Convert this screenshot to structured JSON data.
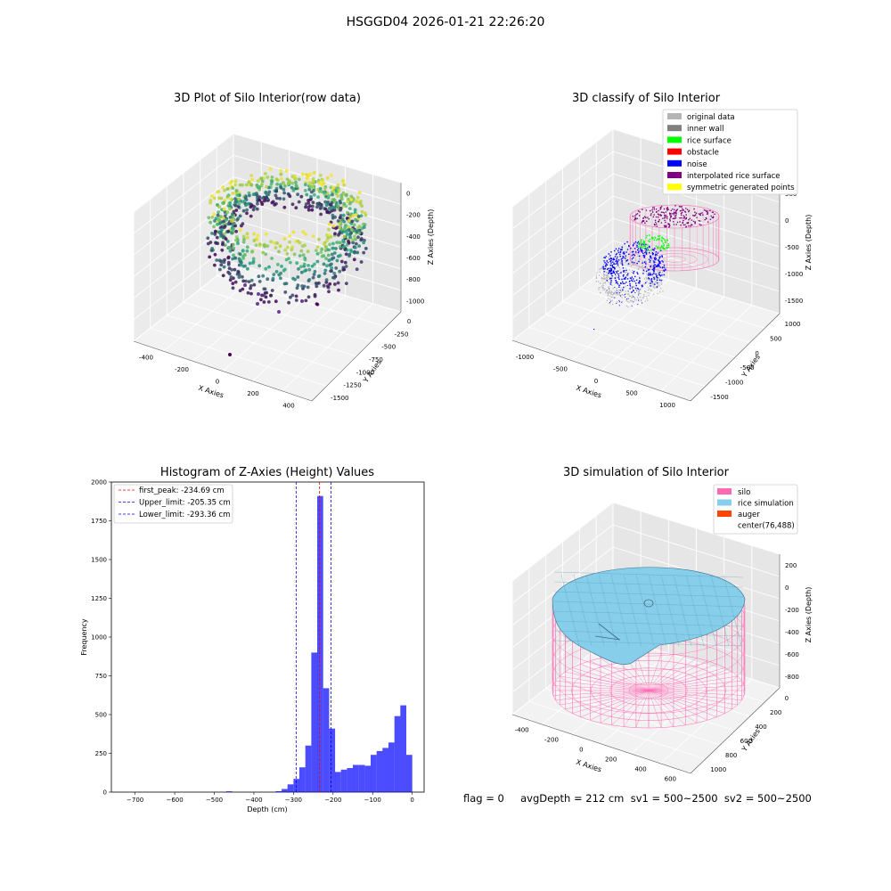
{
  "suptitle": "HSGGD04 2026-01-21 22:26:20",
  "panel1": {
    "title": "3D Plot of Silo Interior(row data)",
    "xlabel": "X Axies",
    "ylabel": "Y Axies",
    "zlabel": "Z Axies (Depth)",
    "xticks": [
      "-400",
      "-200",
      "0",
      "200",
      "400"
    ],
    "yticks": [
      "0",
      "-250",
      "-500",
      "-750",
      "-1000",
      "-1250",
      "-1500"
    ],
    "zticks": [
      "0",
      "-200",
      "-400",
      "-600",
      "-800",
      "-1000"
    ],
    "colors": {
      "high": "#fde725",
      "mid": "#22a884",
      "low": "#440154"
    }
  },
  "panel2": {
    "title": "3D classify of Silo Interior",
    "xlabel": "X Axies",
    "ylabel": "Y Axies",
    "zlabel": "Z Axies (Depth)",
    "xticks": [
      "-1000",
      "-500",
      "0",
      "500",
      "1000"
    ],
    "yticks": [
      "1000",
      "500",
      "0",
      "-500",
      "-1000",
      "-1500"
    ],
    "zticks": [
      "500",
      "0",
      "-500",
      "-1000",
      "-1500"
    ],
    "legend": [
      {
        "label": "original data",
        "color": "#b4b4b4"
      },
      {
        "label": "inner wall",
        "color": "#808080"
      },
      {
        "label": "rice surface",
        "color": "#00ff00"
      },
      {
        "label": "obstacle",
        "color": "#ff0000"
      },
      {
        "label": "noise",
        "color": "#0000ff"
      },
      {
        "label": "interpolated rice surface",
        "color": "#800080"
      },
      {
        "label": "symmetric generated points",
        "color": "#ffff00"
      }
    ],
    "silo_color": "#ff69b4"
  },
  "panel3": {
    "title": "3D simulation of Silo Interior",
    "xlabel": "X Axies",
    "ylabel": "Y Axies",
    "zlabel": "Z Axies (Depth)",
    "xticks": [
      "-400",
      "-200",
      "0",
      "200",
      "400",
      "600"
    ],
    "yticks": [
      "0",
      "200",
      "400",
      "600",
      "800",
      "1000"
    ],
    "zticks": [
      "200",
      "0",
      "-200",
      "-400",
      "-600",
      "-800"
    ],
    "legend": [
      {
        "label": "silo",
        "color": "#ff69b4"
      },
      {
        "label": "rice simulation",
        "color": "#87ceeb"
      },
      {
        "label": "auger",
        "color": "#ff4500"
      },
      {
        "label": "center(76,488)",
        "color": "none"
      }
    ]
  },
  "footer": "flag = 0     avgDepth = 212 cm  sv1 = 500~2500  sv2 = 500~2500",
  "chart_data": {
    "type": "bar",
    "title": "Histogram of Z-Axies (Height) Values",
    "xlabel": "Depth (cm)",
    "ylabel": "Frequency",
    "xlim": [
      -760,
      30
    ],
    "ylim": [
      0,
      2000
    ],
    "xticks": [
      -700,
      -600,
      -500,
      -400,
      -300,
      -200,
      -100,
      0
    ],
    "yticks": [
      0,
      250,
      500,
      750,
      1000,
      1250,
      1500,
      1750,
      2000
    ],
    "bar_color": "#0000ff",
    "bins": [
      {
        "x0": -470,
        "x1": -455,
        "y": 5
      },
      {
        "x0": -345,
        "x1": -330,
        "y": 6
      },
      {
        "x0": -330,
        "x1": -315,
        "y": 20
      },
      {
        "x0": -315,
        "x1": -300,
        "y": 50
      },
      {
        "x0": -300,
        "x1": -285,
        "y": 85
      },
      {
        "x0": -285,
        "x1": -270,
        "y": 160
      },
      {
        "x0": -270,
        "x1": -255,
        "y": 300
      },
      {
        "x0": -255,
        "x1": -240,
        "y": 900
      },
      {
        "x0": -240,
        "x1": -225,
        "y": 1910
      },
      {
        "x0": -225,
        "x1": -210,
        "y": 670
      },
      {
        "x0": -210,
        "x1": -195,
        "y": 410
      },
      {
        "x0": -195,
        "x1": -180,
        "y": 130
      },
      {
        "x0": -180,
        "x1": -165,
        "y": 145
      },
      {
        "x0": -165,
        "x1": -150,
        "y": 155
      },
      {
        "x0": -150,
        "x1": -135,
        "y": 175
      },
      {
        "x0": -135,
        "x1": -120,
        "y": 175
      },
      {
        "x0": -120,
        "x1": -105,
        "y": 170
      },
      {
        "x0": -105,
        "x1": -90,
        "y": 240
      },
      {
        "x0": -90,
        "x1": -75,
        "y": 265
      },
      {
        "x0": -75,
        "x1": -60,
        "y": 285
      },
      {
        "x0": -60,
        "x1": -45,
        "y": 320
      },
      {
        "x0": -45,
        "x1": -30,
        "y": 490
      },
      {
        "x0": -30,
        "x1": -15,
        "y": 560
      },
      {
        "x0": -15,
        "x1": 0,
        "y": 240
      }
    ],
    "lines": [
      {
        "label": "first_peak: -234.69 cm",
        "x": -234.69,
        "color": "#ff0000"
      },
      {
        "label": "Upper_limit: -205.35 cm",
        "x": -205.35,
        "color": "#0000ff"
      },
      {
        "label": "Lower_limit: -293.36 cm",
        "x": -293.36,
        "color": "#0000ff"
      }
    ]
  }
}
